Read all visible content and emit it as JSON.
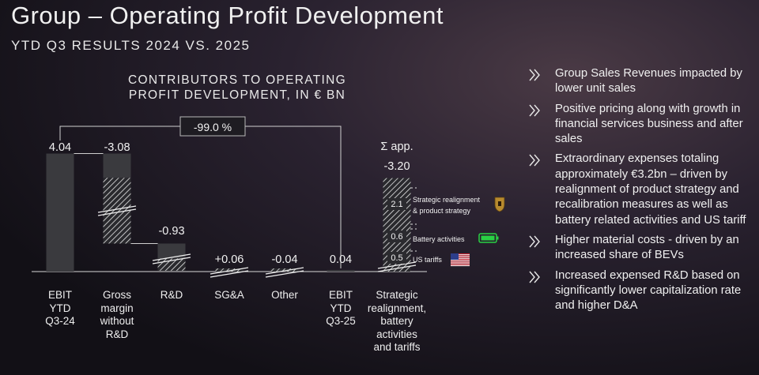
{
  "header": {
    "title": "Group – Operating Profit Development",
    "subtitle": "YTD Q3 RESULTS 2024 VS. 2025"
  },
  "chart_title_lines": [
    "CONTRIBUTORS TO OPERATING",
    "PROFIT DEVELOPMENT, IN € BN"
  ],
  "chart_data": {
    "type": "bar",
    "title": "CONTRIBUTORS TO OPERATING PROFIT DEVELOPMENT, IN € BN",
    "categories": [
      "EBIT YTD Q3-24",
      "Gross margin without R&D",
      "R&D",
      "SG&A",
      "Other",
      "EBIT YTD Q3-25",
      "Strategic realignment, battery activities and tariffs"
    ],
    "values": [
      4.04,
      -3.08,
      -0.93,
      0.06,
      -0.04,
      0.04,
      -3.2
    ],
    "value_labels": [
      "4.04",
      "-3.08",
      "-0.93",
      "+0.06",
      "-0.04",
      "0.04",
      "-3.20"
    ],
    "change_label": "-99.0 %",
    "sum_label": "Σ app.",
    "breakdown": [
      {
        "value": "2.1",
        "label": "Strategic realignment & product strategy",
        "icon": "porsche-crest-icon"
      },
      {
        "value": "0.6",
        "label": "Battery activities",
        "icon": "battery-icon"
      },
      {
        "value": "0.5",
        "label": "US tariffs",
        "icon": "us-flag-icon"
      }
    ],
    "colors": {
      "bar": "#3a3a3e",
      "text": "#f2f2f2",
      "battery": "#29d144"
    }
  },
  "category_lines": [
    [
      "EBIT",
      "YTD",
      "Q3-24"
    ],
    [
      "Gross",
      "margin",
      "without",
      "R&D"
    ],
    [
      "R&D"
    ],
    [
      "SG&A"
    ],
    [
      "Other"
    ],
    [
      "EBIT",
      "YTD",
      "Q3-25"
    ],
    [
      "Strategic",
      "realignment,",
      "battery",
      "activities",
      "and tariffs"
    ]
  ],
  "bullets": [
    "Group Sales Revenues impacted by lower unit sales",
    "Positive pricing along with growth in financial services business and after sales",
    "Extraordinary expenses totaling approximately €3.2bn – driven by realignment of product strategy and recalibration measures as well as battery related activities and US tariff",
    "Higher material costs - driven by an increased share of BEVs",
    "Increased expensed R&D based on significantly lower capitalization rate and higher D&A"
  ]
}
